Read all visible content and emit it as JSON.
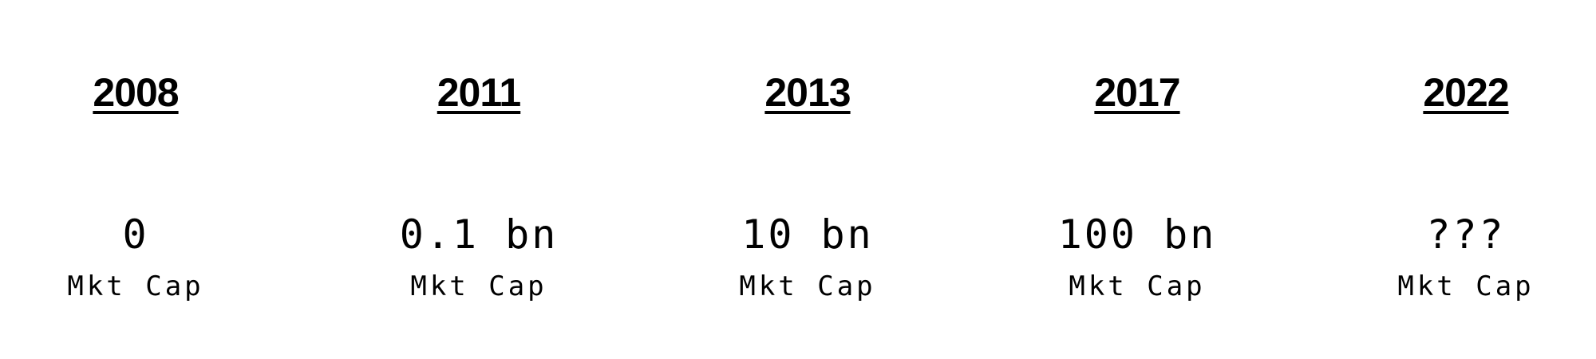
{
  "timeline": {
    "entries": [
      {
        "year": "2008",
        "value": "0",
        "label": "Mkt Cap"
      },
      {
        "year": "2011",
        "value": "0.1 bn",
        "label": "Mkt Cap"
      },
      {
        "year": "2013",
        "value": "10 bn",
        "label": "Mkt Cap"
      },
      {
        "year": "2017",
        "value": "100 bn",
        "label": "Mkt Cap"
      },
      {
        "year": "2022",
        "value": "???",
        "label": "Mkt Cap"
      }
    ]
  },
  "colors": {
    "text": "#000000",
    "background": "#ffffff"
  }
}
